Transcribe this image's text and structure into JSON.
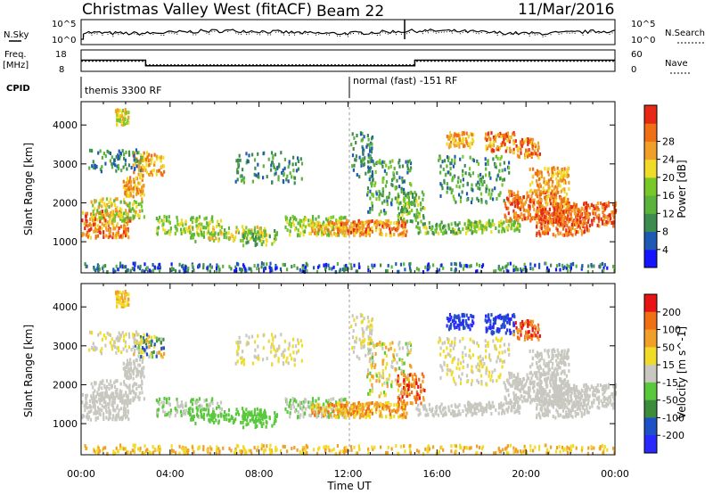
{
  "header": {
    "title": "Christmas Valley West (fitACF)",
    "beam": "Beam 22",
    "date": "11/Mar/2016"
  },
  "panels": {
    "nsky_label": "N.Sky",
    "nsearch_label": "N.Search",
    "noise_ticks": [
      "10^5",
      "10^0"
    ],
    "noise_right_ticks": [
      "10^5",
      "10^0"
    ],
    "freq_label_1": "Freq.",
    "freq_label_2": "[MHz]",
    "freq_ticks": [
      "18",
      "8"
    ],
    "nave_label": "Nave",
    "nave_ticks": [
      "60",
      "0"
    ],
    "cpid_label": "CPID",
    "cpid_1": "themis 3300 RF",
    "cpid_2": "normal (fast) -151 RF"
  },
  "colors": {
    "power": [
      "#1414ff",
      "#1e5ab4",
      "#3c8c50",
      "#5ab43c",
      "#78c828",
      "#f0dc28",
      "#f0a028",
      "#f06e14",
      "#e62814"
    ],
    "velocity": [
      "#2828ff",
      "#1e50c8",
      "#3c8c3c",
      "#5ac83c",
      "#c8c8c0",
      "#f0dc28",
      "#f0a028",
      "#f06e14",
      "#e61414"
    ]
  },
  "chart_data": [
    {
      "type": "heatmap",
      "name": "power",
      "ylabel": "Slant Range [km]",
      "xlabel": "Time UT",
      "x_ticks": [
        "00:00",
        "04:00",
        "08:00",
        "12:00",
        "16:00",
        "20:00",
        "00:00"
      ],
      "xlim_hours": [
        0,
        24
      ],
      "y_ticks": [
        1000,
        2000,
        3000,
        4000
      ],
      "ylim": [
        200,
        4600
      ],
      "colorbar_label": "Power [dB]",
      "colorbar_ticks": [
        "4",
        "8",
        "12",
        "16",
        "20",
        "24",
        "28"
      ],
      "colorbar_range": [
        0,
        30
      ]
    },
    {
      "type": "heatmap",
      "name": "velocity",
      "ylabel": "Slant Range [km]",
      "xlabel": "Time UT",
      "x_ticks": [
        "00:00",
        "04:00",
        "08:00",
        "12:00",
        "16:00",
        "20:00",
        "00:00"
      ],
      "xlim_hours": [
        0,
        24
      ],
      "y_ticks": [
        1000,
        2000,
        3000,
        4000
      ],
      "ylim": [
        200,
        4600
      ],
      "colorbar_label": "Velocity [m s^-1]",
      "colorbar_ticks": [
        "200",
        "100",
        "50",
        "15",
        "-15",
        "-50",
        "-100",
        "-200"
      ],
      "colorbar_range": [
        -250,
        250
      ]
    },
    {
      "type": "line",
      "name": "frequency",
      "ylim": [
        8,
        18
      ],
      "x": [
        0,
        2.9,
        2.9,
        15.0,
        15.0,
        24
      ],
      "y": [
        13.2,
        13.2,
        10.6,
        10.6,
        13.2,
        13.2
      ]
    },
    {
      "type": "line",
      "name": "nave",
      "ylim": [
        0,
        60
      ],
      "x": [
        0,
        2.9,
        2.9,
        15.0,
        15.0,
        24
      ],
      "y": [
        28,
        28,
        18,
        18,
        28,
        28
      ]
    }
  ]
}
